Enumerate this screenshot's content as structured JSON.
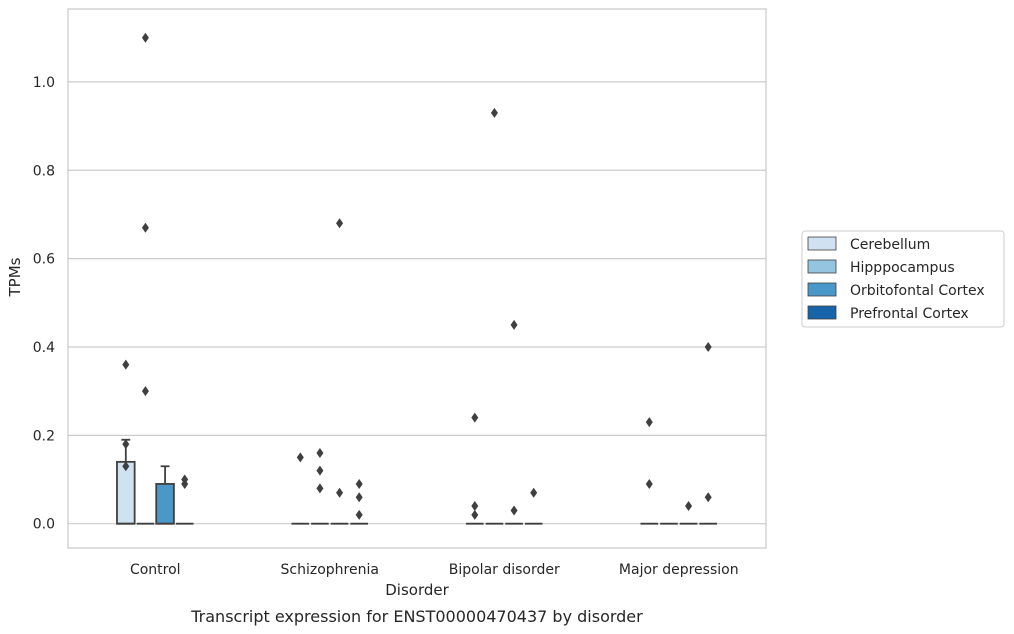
{
  "chart_data": {
    "type": "box",
    "caption": "Transcript expression for ENST00000470437 by disorder",
    "xlabel": "Disorder",
    "ylabel": "TPMs",
    "ylim": [
      -0.055,
      1.165
    ],
    "yticks": [
      0.0,
      0.2,
      0.4,
      0.6,
      0.8,
      1.0
    ],
    "ytick_labels": [
      "0.0",
      "0.2",
      "0.4",
      "0.6",
      "0.8",
      "1.0"
    ],
    "grid": "horizontal",
    "legend_position": "right",
    "categories": [
      "Control",
      "Schizophrenia",
      "Bipolar disorder",
      "Major depression"
    ],
    "series": [
      {
        "name": "Cerebellum",
        "color": "#d0e1f2",
        "boxes": [
          {
            "q1": 0.0,
            "median": 0.0,
            "q3": 0.14,
            "whisker_low": 0.0,
            "whisker_high": 0.19,
            "outliers": [
              0.36,
              0.18,
              0.13
            ]
          },
          {
            "q1": 0.0,
            "median": 0.0,
            "q3": 0.0,
            "whisker_low": 0.0,
            "whisker_high": 0.0,
            "outliers": [
              0.15
            ]
          },
          {
            "q1": 0.0,
            "median": 0.0,
            "q3": 0.0,
            "whisker_low": 0.0,
            "whisker_high": 0.0,
            "outliers": [
              0.24,
              0.04,
              0.02
            ]
          },
          {
            "q1": 0.0,
            "median": 0.0,
            "q3": 0.0,
            "whisker_low": 0.0,
            "whisker_high": 0.0,
            "outliers": [
              0.23,
              0.09
            ]
          }
        ]
      },
      {
        "name": "Hipppocampus",
        "color": "#94c4df",
        "boxes": [
          {
            "q1": 0.0,
            "median": 0.0,
            "q3": 0.0,
            "whisker_low": 0.0,
            "whisker_high": 0.0,
            "outliers": [
              1.1,
              0.67,
              0.3
            ]
          },
          {
            "q1": 0.0,
            "median": 0.0,
            "q3": 0.0,
            "whisker_low": 0.0,
            "whisker_high": 0.0,
            "outliers": [
              0.16,
              0.12,
              0.08
            ]
          },
          {
            "q1": 0.0,
            "median": 0.0,
            "q3": 0.0,
            "whisker_low": 0.0,
            "whisker_high": 0.0,
            "outliers": [
              0.93
            ]
          },
          {
            "q1": 0.0,
            "median": 0.0,
            "q3": 0.0,
            "whisker_low": 0.0,
            "whisker_high": 0.0,
            "outliers": []
          }
        ]
      },
      {
        "name": "Orbitofontal Cortex",
        "color": "#4a98c9",
        "boxes": [
          {
            "q1": 0.0,
            "median": 0.0,
            "q3": 0.09,
            "whisker_low": 0.0,
            "whisker_high": 0.13,
            "outliers": []
          },
          {
            "q1": 0.0,
            "median": 0.0,
            "q3": 0.0,
            "whisker_low": 0.0,
            "whisker_high": 0.0,
            "outliers": [
              0.68,
              0.07
            ]
          },
          {
            "q1": 0.0,
            "median": 0.0,
            "q3": 0.0,
            "whisker_low": 0.0,
            "whisker_high": 0.0,
            "outliers": [
              0.45,
              0.03
            ]
          },
          {
            "q1": 0.0,
            "median": 0.0,
            "q3": 0.0,
            "whisker_low": 0.0,
            "whisker_high": 0.0,
            "outliers": [
              0.04
            ]
          }
        ]
      },
      {
        "name": "Prefrontal Cortex",
        "color": "#1764ab",
        "boxes": [
          {
            "q1": 0.0,
            "median": 0.0,
            "q3": 0.0,
            "whisker_low": 0.0,
            "whisker_high": 0.0,
            "outliers": [
              0.1,
              0.09
            ]
          },
          {
            "q1": 0.0,
            "median": 0.0,
            "q3": 0.0,
            "whisker_low": 0.0,
            "whisker_high": 0.0,
            "outliers": [
              0.09,
              0.06,
              0.02
            ]
          },
          {
            "q1": 0.0,
            "median": 0.0,
            "q3": 0.0,
            "whisker_low": 0.0,
            "whisker_high": 0.0,
            "outliers": [
              0.07
            ]
          },
          {
            "q1": 0.0,
            "median": 0.0,
            "q3": 0.0,
            "whisker_low": 0.0,
            "whisker_high": 0.0,
            "outliers": [
              0.4,
              0.06
            ]
          }
        ]
      }
    ]
  }
}
